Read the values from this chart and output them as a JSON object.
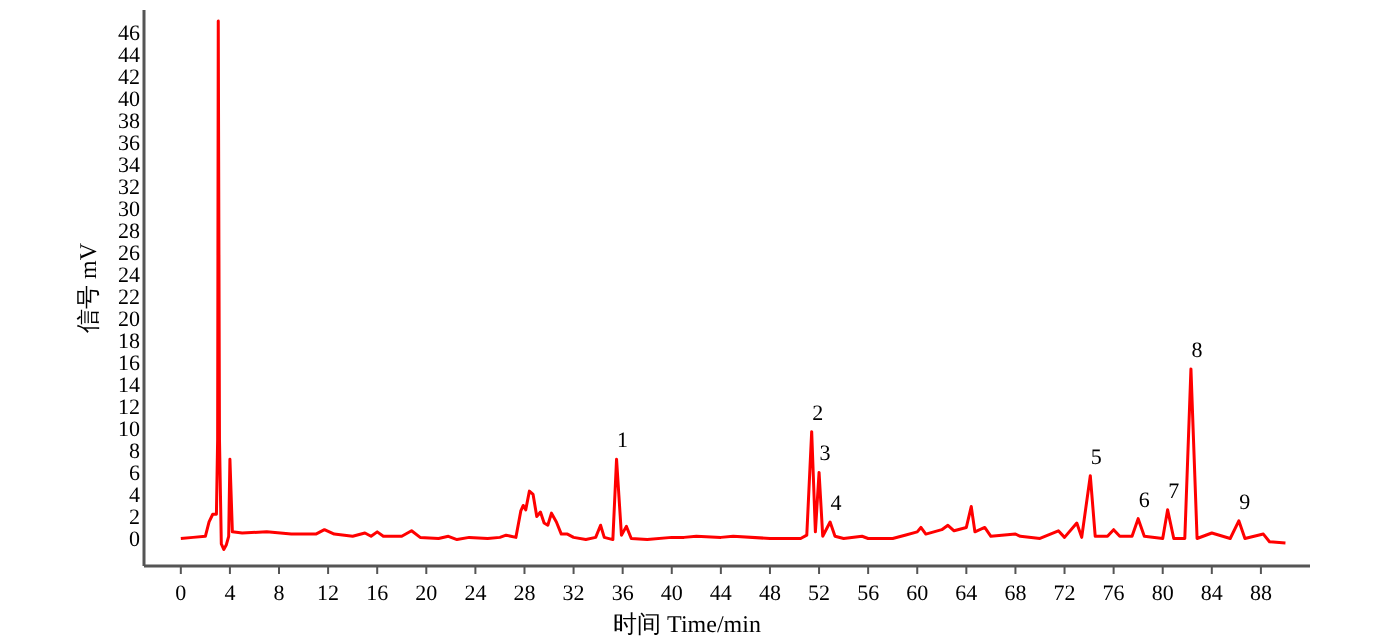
{
  "chart_data": {
    "type": "line",
    "xlabel": "时间 Time/min",
    "ylabel": "信号 mV",
    "xlim": [
      -3,
      92
    ],
    "ylim": [
      -2.5,
      48
    ],
    "xticks": [
      0,
      4,
      8,
      12,
      16,
      20,
      24,
      28,
      32,
      36,
      40,
      44,
      48,
      52,
      56,
      60,
      64,
      68,
      72,
      76,
      80,
      84,
      88
    ],
    "yticks": [
      0,
      2,
      4,
      6,
      8,
      10,
      12,
      14,
      16,
      18,
      20,
      22,
      24,
      26,
      28,
      30,
      32,
      34,
      36,
      38,
      40,
      42,
      44,
      46
    ],
    "grid": false,
    "marker": "none",
    "line_style": "solid",
    "series": [
      {
        "color": "#ff0000",
        "x": [
          0,
          1,
          2,
          2.3,
          2.6,
          2.9,
          3.0,
          3.05,
          3.15,
          3.3,
          3.5,
          3.7,
          3.9,
          4.0,
          4.2,
          5,
          7,
          9,
          11,
          11.7,
          12.5,
          14,
          15,
          15.5,
          16,
          16.5,
          18,
          18.8,
          19.5,
          21,
          21.8,
          22.5,
          23.5,
          25,
          26,
          26.5,
          27.3,
          27.7,
          27.9,
          28.1,
          28.4,
          28.7,
          29,
          29.3,
          29.6,
          29.9,
          30.2,
          30.6,
          31,
          31.5,
          32,
          33,
          33.8,
          34.2,
          34.5,
          35.2,
          35.5,
          35.9,
          36.3,
          36.7,
          38,
          40,
          41,
          42,
          44,
          45,
          48,
          50.5,
          51.0,
          51.4,
          51.7,
          52.0,
          52.3,
          52.9,
          53.3,
          54,
          55.5,
          56,
          58,
          59,
          60,
          60.3,
          60.7,
          62,
          62.5,
          63,
          64,
          64.4,
          64.7,
          65.5,
          66,
          68,
          68.4,
          70,
          71.5,
          72,
          73,
          73.4,
          74.1,
          74.5,
          75.5,
          76,
          76.5,
          77.5,
          78,
          78.5,
          80,
          80.4,
          80.9,
          81.8,
          82.3,
          82.8,
          84,
          85.5,
          86.2,
          86.7,
          88.2,
          88.7,
          90
        ],
        "values": [
          0,
          0.1,
          0.2,
          1.5,
          2.2,
          2.2,
          9,
          47,
          9,
          -0.5,
          -1.0,
          -0.6,
          0.2,
          7.2,
          0.6,
          0.5,
          0.6,
          0.4,
          0.4,
          0.8,
          0.4,
          0.2,
          0.5,
          0.2,
          0.6,
          0.2,
          0.2,
          0.7,
          0.1,
          0,
          0.2,
          -0.1,
          0.1,
          0,
          0.1,
          0.3,
          0.1,
          2.5,
          3.0,
          2.6,
          4.3,
          4.0,
          2,
          2.4,
          1.4,
          1.2,
          2.3,
          1.5,
          0.4,
          0.4,
          0.1,
          -0.1,
          0.1,
          1.2,
          0.1,
          -0.1,
          7.2,
          0.3,
          1.1,
          0,
          -0.1,
          0.1,
          0.1,
          0.2,
          0.1,
          0.2,
          0,
          0,
          0.3,
          9.7,
          0.6,
          6.0,
          0.2,
          1.5,
          0.2,
          0,
          0.2,
          0,
          0,
          0.3,
          0.6,
          1.0,
          0.4,
          0.8,
          1.2,
          0.7,
          1.0,
          2.9,
          0.6,
          1.0,
          0.2,
          0.4,
          0.2,
          0,
          0.7,
          0.1,
          1.4,
          0.1,
          5.7,
          0.2,
          0.2,
          0.8,
          0.2,
          0.2,
          1.8,
          0.2,
          0,
          2.6,
          0,
          0,
          15.4,
          0,
          0.5,
          0,
          1.6,
          0,
          0.4,
          -0.3,
          -0.4
        ]
      }
    ],
    "annotations": [
      {
        "text": "1",
        "x": 35.5,
        "y": 7.2
      },
      {
        "text": "2",
        "x": 51.4,
        "y": 9.7
      },
      {
        "text": "3",
        "x": 52.0,
        "y": 6.0
      },
      {
        "text": "4",
        "x": 52.9,
        "y": 1.5
      },
      {
        "text": "5",
        "x": 74.1,
        "y": 5.7
      },
      {
        "text": "6",
        "x": 78,
        "y": 1.8
      },
      {
        "text": "7",
        "x": 80.4,
        "y": 2.6
      },
      {
        "text": "8",
        "x": 82.3,
        "y": 15.4
      },
      {
        "text": "9",
        "x": 86.2,
        "y": 1.6
      }
    ]
  }
}
